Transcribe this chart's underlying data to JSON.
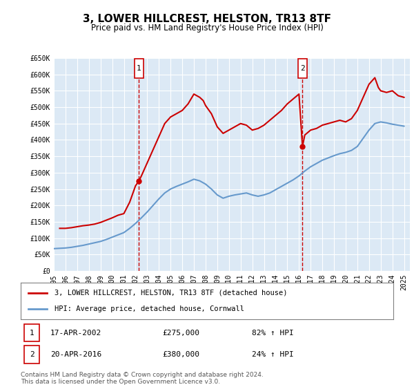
{
  "title": "3, LOWER HILLCREST, HELSTON, TR13 8TF",
  "subtitle": "Price paid vs. HM Land Registry's House Price Index (HPI)",
  "ylabel": "",
  "xlabel": "",
  "ylim": [
    0,
    650000
  ],
  "xlim_start": 1995.0,
  "xlim_end": 2025.5,
  "yticks": [
    0,
    50000,
    100000,
    150000,
    200000,
    250000,
    300000,
    350000,
    400000,
    450000,
    500000,
    550000,
    600000,
    650000
  ],
  "ytick_labels": [
    "£0",
    "£50K",
    "£100K",
    "£150K",
    "£200K",
    "£250K",
    "£300K",
    "£350K",
    "£400K",
    "£450K",
    "£500K",
    "£550K",
    "£600K",
    "£650K"
  ],
  "xticks": [
    1995,
    1996,
    1997,
    1998,
    1999,
    2000,
    2001,
    2002,
    2003,
    2004,
    2005,
    2006,
    2007,
    2008,
    2009,
    2010,
    2011,
    2012,
    2013,
    2014,
    2015,
    2016,
    2017,
    2018,
    2019,
    2020,
    2021,
    2022,
    2023,
    2024,
    2025
  ],
  "background_color": "#dce9f5",
  "plot_bg_color": "#dce9f5",
  "fig_bg_color": "#ffffff",
  "red_line_color": "#cc0000",
  "blue_line_color": "#6699cc",
  "marker1_x": 2002.29,
  "marker1_y": 275000,
  "marker1_label": "1",
  "marker1_date": "17-APR-2002",
  "marker1_price": "£275,000",
  "marker1_hpi": "82% ↑ HPI",
  "marker2_x": 2016.3,
  "marker2_y": 380000,
  "marker2_label": "2",
  "marker2_date": "20-APR-2016",
  "marker2_price": "£380,000",
  "marker2_hpi": "24% ↑ HPI",
  "legend_line1": "3, LOWER HILLCREST, HELSTON, TR13 8TF (detached house)",
  "legend_line2": "HPI: Average price, detached house, Cornwall",
  "footnote": "Contains HM Land Registry data © Crown copyright and database right 2024.\nThis data is licensed under the Open Government Licence v3.0.",
  "red_hpi_data": {
    "years": [
      1995.5,
      1996.0,
      1996.5,
      1997.0,
      1997.5,
      1998.0,
      1998.5,
      1999.0,
      1999.5,
      2000.0,
      2000.5,
      2001.0,
      2001.5,
      2002.0,
      2002.29,
      2002.5,
      2003.0,
      2003.5,
      2004.0,
      2004.5,
      2005.0,
      2005.5,
      2006.0,
      2006.5,
      2007.0,
      2007.5,
      2007.8,
      2008.0,
      2008.5,
      2009.0,
      2009.5,
      2010.0,
      2010.5,
      2011.0,
      2011.5,
      2012.0,
      2012.5,
      2013.0,
      2013.5,
      2014.0,
      2014.5,
      2015.0,
      2015.5,
      2016.0,
      2016.3,
      2016.5,
      2017.0,
      2017.5,
      2018.0,
      2018.5,
      2019.0,
      2019.5,
      2020.0,
      2020.5,
      2021.0,
      2021.5,
      2022.0,
      2022.5,
      2022.8,
      2023.0,
      2023.5,
      2024.0,
      2024.5,
      2025.0
    ],
    "values": [
      130000,
      130000,
      132000,
      135000,
      138000,
      140000,
      143000,
      148000,
      155000,
      162000,
      170000,
      175000,
      210000,
      260000,
      275000,
      290000,
      330000,
      370000,
      410000,
      450000,
      470000,
      480000,
      490000,
      510000,
      540000,
      530000,
      520000,
      505000,
      480000,
      440000,
      420000,
      430000,
      440000,
      450000,
      445000,
      430000,
      435000,
      445000,
      460000,
      475000,
      490000,
      510000,
      525000,
      540000,
      380000,
      415000,
      430000,
      435000,
      445000,
      450000,
      455000,
      460000,
      455000,
      465000,
      490000,
      530000,
      570000,
      590000,
      560000,
      550000,
      545000,
      550000,
      535000,
      530000
    ]
  },
  "blue_hpi_data": {
    "years": [
      1995.0,
      1995.5,
      1996.0,
      1996.5,
      1997.0,
      1997.5,
      1998.0,
      1998.5,
      1999.0,
      1999.5,
      2000.0,
      2000.5,
      2001.0,
      2001.5,
      2002.0,
      2002.5,
      2003.0,
      2003.5,
      2004.0,
      2004.5,
      2005.0,
      2005.5,
      2006.0,
      2006.5,
      2007.0,
      2007.5,
      2008.0,
      2008.5,
      2009.0,
      2009.5,
      2010.0,
      2010.5,
      2011.0,
      2011.5,
      2012.0,
      2012.5,
      2013.0,
      2013.5,
      2014.0,
      2014.5,
      2015.0,
      2015.5,
      2016.0,
      2016.5,
      2017.0,
      2017.5,
      2018.0,
      2018.5,
      2019.0,
      2019.5,
      2020.0,
      2020.5,
      2021.0,
      2021.5,
      2022.0,
      2022.5,
      2023.0,
      2023.5,
      2024.0,
      2024.5,
      2025.0
    ],
    "values": [
      68000,
      69000,
      70000,
      72000,
      75000,
      78000,
      82000,
      86000,
      90000,
      96000,
      103000,
      110000,
      117000,
      130000,
      145000,
      162000,
      180000,
      200000,
      220000,
      238000,
      250000,
      258000,
      265000,
      272000,
      280000,
      275000,
      265000,
      250000,
      232000,
      222000,
      228000,
      232000,
      235000,
      238000,
      232000,
      228000,
      232000,
      238000,
      248000,
      258000,
      268000,
      278000,
      290000,
      305000,
      318000,
      328000,
      338000,
      345000,
      352000,
      358000,
      362000,
      368000,
      380000,
      405000,
      430000,
      450000,
      455000,
      452000,
      448000,
      445000,
      442000
    ]
  }
}
